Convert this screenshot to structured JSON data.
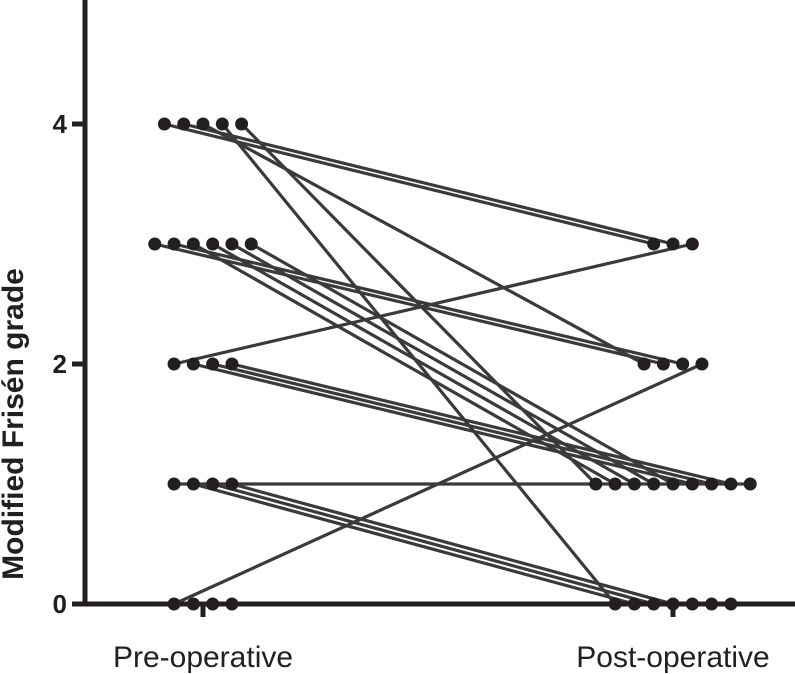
{
  "chart_data": {
    "type": "scatter",
    "subtype": "paired-dot-plot",
    "title": "",
    "xlabel": "",
    "ylabel": "Modified Frisén grade",
    "categories": [
      "Pre-operative",
      "Post-operative"
    ],
    "y_ticks": [
      0,
      2,
      4
    ],
    "ylim": [
      0,
      5
    ],
    "grid": false,
    "legend": "none",
    "colors": {
      "points": "#231f20",
      "lines": "#3a3a3a",
      "axes": "#231f20"
    },
    "pairs": [
      {
        "pre": 4,
        "post": 3
      },
      {
        "pre": 4,
        "post": 3
      },
      {
        "pre": 4,
        "post": 2
      },
      {
        "pre": 4,
        "post": 0
      },
      {
        "pre": 4,
        "post": 1
      },
      {
        "pre": 3,
        "post": 2
      },
      {
        "pre": 3,
        "post": 2
      },
      {
        "pre": 3,
        "post": 1
      },
      {
        "pre": 3,
        "post": 1
      },
      {
        "pre": 3,
        "post": 1
      },
      {
        "pre": 3,
        "post": 1
      },
      {
        "pre": 2,
        "post": 3
      },
      {
        "pre": 2,
        "post": 1
      },
      {
        "pre": 2,
        "post": 1
      },
      {
        "pre": 2,
        "post": 1
      },
      {
        "pre": 1,
        "post": 1
      },
      {
        "pre": 1,
        "post": 0
      },
      {
        "pre": 1,
        "post": 0
      },
      {
        "pre": 1,
        "post": 0
      },
      {
        "pre": 0,
        "post": 2
      },
      {
        "pre": 0,
        "post": 0
      },
      {
        "pre": 0,
        "post": 0
      },
      {
        "pre": 0,
        "post": 0
      }
    ]
  }
}
